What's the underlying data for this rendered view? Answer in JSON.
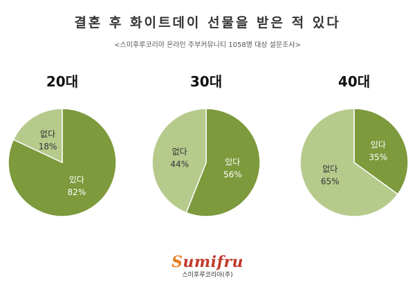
{
  "title": "결혼 후 화이트데이 선물을 받은 적 있다",
  "subtitle": "<스미후루코리아 온라인 주부커뮤니티 1058명 대상 설문조사>",
  "logo": {
    "word_rest": "umifru",
    "word_first": "S",
    "company": "스미후루코리아(주)"
  },
  "colors": {
    "dark_green": "#7d9a3c",
    "light_green": "#b6ca8c"
  },
  "chart_data": [
    {
      "type": "pie",
      "title": "20대",
      "slices": [
        {
          "label": "있다",
          "value": 82,
          "text": "82%"
        },
        {
          "label": "없다",
          "value": 18,
          "text": "18%"
        }
      ]
    },
    {
      "type": "pie",
      "title": "30대",
      "slices": [
        {
          "label": "있다",
          "value": 56,
          "text": "56%"
        },
        {
          "label": "없다",
          "value": 44,
          "text": "44%"
        }
      ]
    },
    {
      "type": "pie",
      "title": "40대",
      "slices": [
        {
          "label": "있다",
          "value": 35,
          "text": "35%"
        },
        {
          "label": "없다",
          "value": 65,
          "text": "65%"
        }
      ]
    }
  ]
}
